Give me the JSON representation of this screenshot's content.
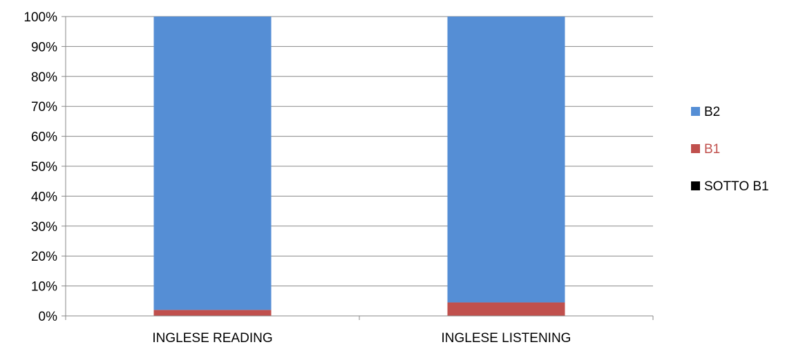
{
  "chart_data": {
    "type": "bar",
    "stacked": true,
    "normalized_100": true,
    "categories": [
      "INGLESE READING",
      "INGLESE LISTENING"
    ],
    "series": [
      {
        "name": "SOTTO B1",
        "values": [
          0,
          0
        ],
        "color": "#000000"
      },
      {
        "name": "B1",
        "values": [
          2,
          4.5
        ],
        "color": "#C0504D"
      },
      {
        "name": "B2",
        "values": [
          98,
          95.5
        ],
        "color": "#558ED5"
      }
    ],
    "ylim": [
      0,
      100
    ],
    "yticks": [
      {
        "value": 0,
        "label": "0%"
      },
      {
        "value": 10,
        "label": "10%"
      },
      {
        "value": 20,
        "label": "20%"
      },
      {
        "value": 30,
        "label": "30%"
      },
      {
        "value": 40,
        "label": "40%"
      },
      {
        "value": 50,
        "label": "50%"
      },
      {
        "value": 60,
        "label": "60%"
      },
      {
        "value": 70,
        "label": "70%"
      },
      {
        "value": 80,
        "label": "80%"
      },
      {
        "value": 90,
        "label": "90%"
      },
      {
        "value": 100,
        "label": "100%"
      }
    ],
    "legend_order": [
      "B2",
      "B1",
      "SOTTO B1"
    ],
    "legend_text_colors": {
      "B2": "#000000",
      "B1": "#C0504D",
      "SOTTO B1": "#000000"
    },
    "legend_position": "right",
    "grid": true,
    "gridline_color": "#878787",
    "title": "",
    "xlabel": "",
    "ylabel": ""
  }
}
